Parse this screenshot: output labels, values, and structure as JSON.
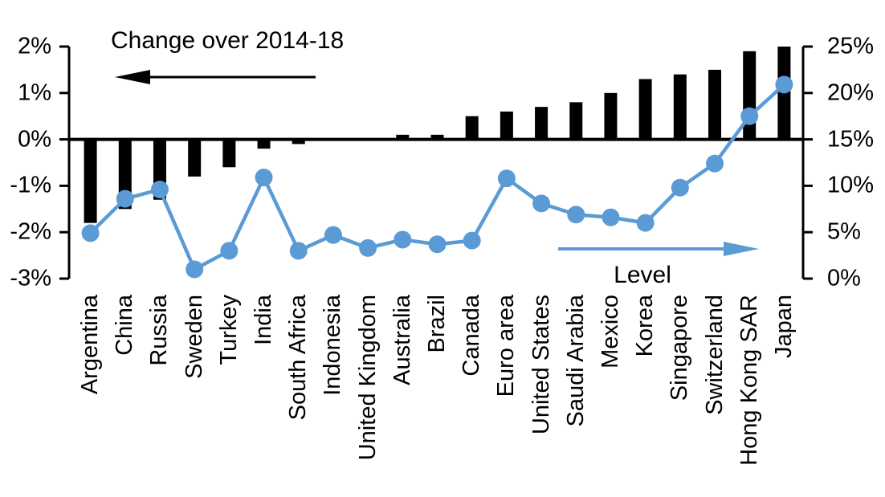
{
  "chart_data": {
    "type": "bar",
    "subtype": "combo-bar-line",
    "categories": [
      "Argentina",
      "China",
      "Russia",
      "Sweden",
      "Turkey",
      "India",
      "South Africa",
      "Indonesia",
      "United Kingdom",
      "Australia",
      "Brazil",
      "Canada",
      "Euro area",
      "United States",
      "Saudi Arabia",
      "Mexico",
      "Korea",
      "Singapore",
      "Switzerland",
      "Hong Kong SAR",
      "Japan"
    ],
    "series": [
      {
        "name": "Change over 2014-18",
        "type": "bar",
        "axis": "left",
        "color": "#000000",
        "values": [
          -1.8,
          -1.5,
          -1.3,
          -0.8,
          -0.6,
          -0.2,
          -0.1,
          0,
          0,
          0.1,
          0.1,
          0.5,
          0.6,
          0.7,
          0.8,
          1.0,
          1.3,
          1.4,
          1.5,
          1.9,
          2.0
        ]
      },
      {
        "name": "Level",
        "type": "line",
        "axis": "right",
        "color": "#5B9BD5",
        "values": [
          4.9,
          8.6,
          9.6,
          1.0,
          3.0,
          10.9,
          3.0,
          4.7,
          3.3,
          4.2,
          3.7,
          4.1,
          10.8,
          8.1,
          6.9,
          6.6,
          6.0,
          9.8,
          12.4,
          17.5,
          20.9
        ]
      }
    ],
    "left_axis": {
      "min": -3,
      "max": 2,
      "ticks": [
        "2%",
        "1%",
        "0%",
        "-1%",
        "-2%",
        "-3%"
      ]
    },
    "right_axis": {
      "min": 0,
      "max": 25,
      "ticks": [
        "25%",
        "20%",
        "15%",
        "10%",
        "5%",
        "0%"
      ]
    },
    "annotations": {
      "bar_label": "Change over 2014-18",
      "line_label": "Level",
      "bar_arrow_direction": "left",
      "line_arrow_direction": "right"
    },
    "grid": false,
    "legend_position": "in-plot-annotations"
  }
}
